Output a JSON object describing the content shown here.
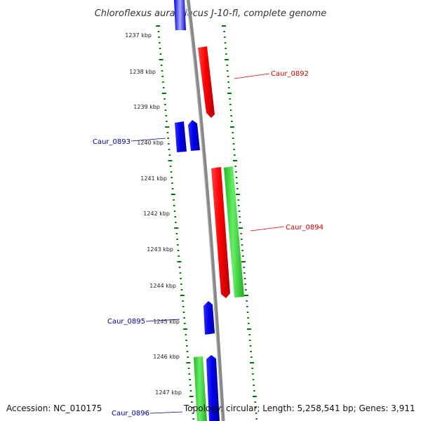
{
  "title": "Chloroflexus aurantiacus J-10-fl, complete genome",
  "axis_ticks": [
    "1237 kbp",
    "1238 kbp",
    "1239 kbp",
    "1240 kbp",
    "1241 kbp",
    "1242 kbp",
    "1243 kbp",
    "1244 kbp",
    "1245 kbp",
    "1246 kbp",
    "1247 kbp"
  ],
  "gene_labels": [
    {
      "id": "Caur_0892",
      "color": "#cc0000"
    },
    {
      "id": "Caur_0893",
      "color": "#000099"
    },
    {
      "id": "Caur_0894",
      "color": "#cc0000"
    },
    {
      "id": "Caur_0895",
      "color": "#000099"
    },
    {
      "id": "Caur_0896",
      "color": "#000099"
    }
  ],
  "colors": {
    "forward_gene": "#ff0000",
    "reverse_gene": "#0000ee",
    "rna_gene": "#33cc33",
    "backbone": "#888888",
    "gc_ticks": "#007700"
  },
  "footer": {
    "accession": "Accession: NC_010175",
    "summary": "Topology: circular; Length: 5,258,541 bp; Genes: 3,911"
  }
}
